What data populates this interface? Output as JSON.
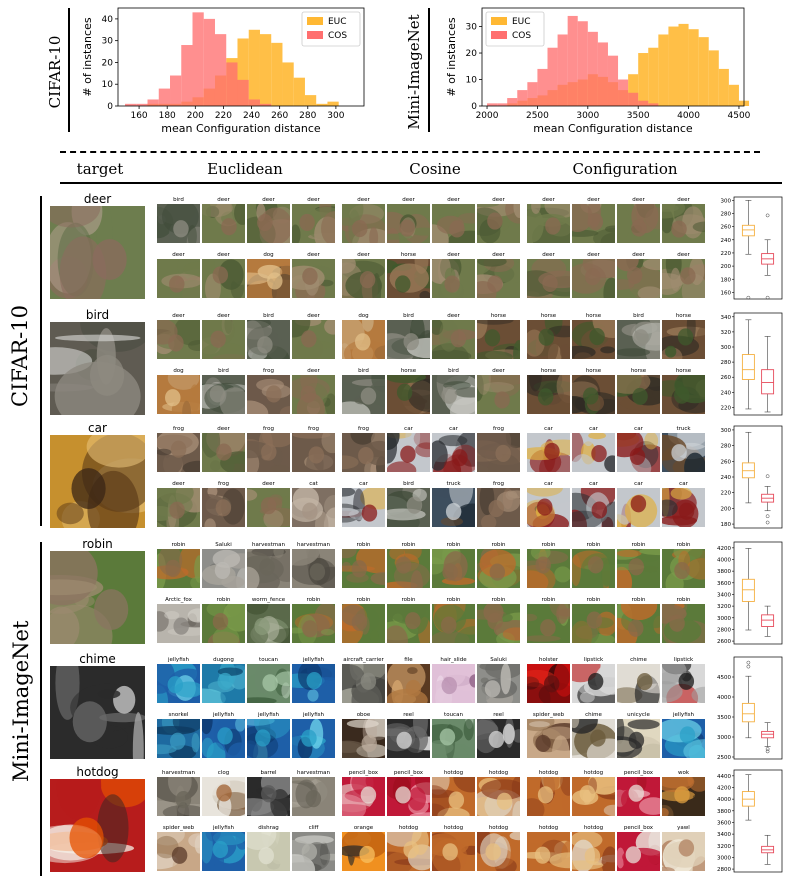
{
  "top_charts": [
    {
      "row_label": "CIFAR-10",
      "chart_data": {
        "type": "bar",
        "xlabel": "mean Configuration distance",
        "ylabel": "# of instances",
        "xlim": [
          145,
          320
        ],
        "ylim": [
          0,
          45
        ],
        "xticks": [
          "160",
          "180",
          "200",
          "220",
          "240",
          "260",
          "280",
          "300"
        ],
        "yticks": [
          "0",
          "10",
          "20",
          "30",
          "40"
        ],
        "legend_position": "top-right",
        "bin_start": 150,
        "bin_width": 8,
        "series": [
          {
            "name": "EUC",
            "color": "#ffb833",
            "values": [
              0,
              0,
              1,
              1,
              1,
              2,
              4,
              8,
              14,
              22,
              31,
              35,
              33,
              29,
              20,
              13,
              5,
              1,
              2,
              0
            ]
          },
          {
            "name": "COS",
            "color": "#ff6f6f",
            "values": [
              1,
              1,
              3,
              8,
              14,
              28,
              43,
              40,
              33,
              20,
              12,
              3,
              1,
              0,
              0,
              0,
              0,
              0,
              0,
              0
            ]
          }
        ]
      }
    },
    {
      "row_label": "Mini-ImageNet",
      "chart_data": {
        "type": "bar",
        "xlabel": "mean Configuration distance",
        "ylabel": "# of instances",
        "xlim": [
          1950,
          4550
        ],
        "ylim": [
          0,
          37
        ],
        "xticks": [
          "2000",
          "2500",
          "3000",
          "3500",
          "4000",
          "4500"
        ],
        "yticks": [
          "0",
          "10",
          "20",
          "30"
        ],
        "legend_position": "top-left",
        "bin_start": 2000,
        "bin_width": 100,
        "series": [
          {
            "name": "EUC",
            "color": "#ffb833",
            "values": [
              0,
              0,
              1,
              2,
              3,
              4,
              6,
              8,
              9,
              10,
              12,
              11,
              9,
              6,
              12,
              20,
              22,
              27,
              30,
              31,
              29,
              26,
              21,
              14,
              8,
              2,
              0
            ]
          },
          {
            "name": "COS",
            "color": "#ff6f6f",
            "values": [
              1,
              1,
              3,
              6,
              9,
              14,
              22,
              27,
              34,
              32,
              28,
              24,
              19,
              10,
              5,
              2,
              1,
              0,
              0,
              0,
              0,
              0,
              0,
              0,
              0,
              0,
              0
            ]
          }
        ]
      }
    }
  ],
  "column_headers": {
    "target": "target",
    "euclidean": "Euclidean",
    "cosine": "Cosine",
    "configuration": "Configuration"
  },
  "section_labels": {
    "cifar": "CIFAR-10",
    "mini": "Mini-ImageNet"
  },
  "targets": [
    {
      "name": "deer",
      "palette": [
        "#6d7d4e",
        "#8b6b5d",
        "#5e6e48",
        "#b9a497"
      ]
    },
    {
      "name": "bird",
      "palette": [
        "#5f5b52",
        "#8d8980",
        "#d8d8d4",
        "#464b3e"
      ]
    },
    {
      "name": "car",
      "palette": [
        "#c6902e",
        "#3a2516",
        "#e8c27a",
        "#5a3a18"
      ]
    },
    {
      "name": "robin",
      "palette": [
        "#5b7a3a",
        "#8a7460",
        "#6e8e42",
        "#9c8a6f"
      ]
    },
    {
      "name": "chime",
      "palette": [
        "#2b2b2b",
        "#6a6a6a",
        "#a4a4a4",
        "#d0d0d0"
      ]
    },
    {
      "name": "hotdog",
      "palette": [
        "#b71c1c",
        "#e65100",
        "#f5f0e6",
        "#3e2723"
      ]
    }
  ],
  "neighbors": [
    {
      "euclidean": [
        [
          "bird",
          "deer",
          "deer",
          "deer"
        ],
        [
          "deer",
          "deer",
          "dog",
          "deer"
        ]
      ],
      "cosine": [
        [
          "deer",
          "deer",
          "deer",
          "deer"
        ],
        [
          "deer",
          "horse",
          "deer",
          "deer"
        ]
      ],
      "configuration": [
        [
          "deer",
          "deer",
          "deer",
          "deer"
        ],
        [
          "deer",
          "deer",
          "deer",
          "deer"
        ]
      ]
    },
    {
      "euclidean": [
        [
          "deer",
          "deer",
          "bird",
          "deer"
        ],
        [
          "dog",
          "bird",
          "frog",
          "deer"
        ]
      ],
      "cosine": [
        [
          "dog",
          "bird",
          "deer",
          "horse"
        ],
        [
          "bird",
          "horse",
          "bird",
          "deer"
        ]
      ],
      "configuration": [
        [
          "horse",
          "horse",
          "bird",
          "horse"
        ],
        [
          "horse",
          "horse",
          "horse",
          "horse"
        ]
      ]
    },
    {
      "euclidean": [
        [
          "frog",
          "deer",
          "frog",
          "frog"
        ],
        [
          "deer",
          "frog",
          "deer",
          "cat"
        ]
      ],
      "cosine": [
        [
          "frog",
          "car",
          "car",
          "frog"
        ],
        [
          "car",
          "bird",
          "truck",
          "frog"
        ]
      ],
      "configuration": [
        [
          "car",
          "car",
          "car",
          "truck"
        ],
        [
          "car",
          "car",
          "car",
          "car"
        ]
      ]
    },
    {
      "euclidean": [
        [
          "robin",
          "Saluki",
          "harvestman",
          "harvestman"
        ],
        [
          "Arctic_fox",
          "robin",
          "worm_fence",
          "robin"
        ]
      ],
      "cosine": [
        [
          "robin",
          "robin",
          "robin",
          "robin"
        ],
        [
          "robin",
          "robin",
          "robin",
          "robin"
        ]
      ],
      "configuration": [
        [
          "robin",
          "robin",
          "robin",
          "robin"
        ],
        [
          "robin",
          "robin",
          "robin",
          "robin"
        ]
      ]
    },
    {
      "euclidean": [
        [
          "jellyfish",
          "dugong",
          "toucan",
          "jellyfish"
        ],
        [
          "snorkel",
          "jellyfish",
          "jellyfish",
          "jellyfish"
        ]
      ],
      "cosine": [
        [
          "aircraft_carrier",
          "file",
          "hair_slide",
          "Saluki"
        ],
        [
          "oboe",
          "reel",
          "toucan",
          "reel"
        ]
      ],
      "configuration": [
        [
          "holster",
          "lipstick",
          "chime",
          "lipstick"
        ],
        [
          "spider_web",
          "chime",
          "unicycle",
          "jellyfish"
        ]
      ]
    },
    {
      "euclidean": [
        [
          "harvestman",
          "clog",
          "barrel",
          "harvestman"
        ],
        [
          "spider_web",
          "jellyfish",
          "dishrag",
          "cliff"
        ]
      ],
      "cosine": [
        [
          "pencil_box",
          "pencil_box",
          "hotdog",
          "hotdog"
        ],
        [
          "orange",
          "hotdog",
          "hotdog",
          "hotdog"
        ]
      ],
      "configuration": [
        [
          "hotdog",
          "hotdog",
          "pencil_box",
          "wok"
        ],
        [
          "hotdog",
          "hotdog",
          "pencil_box",
          "yawl"
        ]
      ]
    }
  ],
  "boxplots": [
    {
      "ylim": [
        150,
        305
      ],
      "yticks": [
        "160",
        "180",
        "200",
        "220",
        "240",
        "260",
        "280",
        "300"
      ],
      "euc": {
        "q1": 246,
        "med": 255,
        "q3": 262,
        "lo": 218,
        "hi": 300,
        "outliers": [
          152
        ]
      },
      "cos": {
        "q1": 203,
        "med": 211,
        "q3": 219,
        "lo": 186,
        "hi": 240,
        "outliers": [
          277,
          152
        ]
      }
    },
    {
      "ylim": [
        210,
        345
      ],
      "yticks": [
        "220",
        "240",
        "260",
        "280",
        "300",
        "320",
        "340"
      ],
      "euc": {
        "q1": 257,
        "med": 270,
        "q3": 290,
        "lo": 218,
        "hi": 336,
        "outliers": []
      },
      "cos": {
        "q1": 238,
        "med": 253,
        "q3": 270,
        "lo": 214,
        "hi": 314,
        "outliers": []
      }
    },
    {
      "ylim": [
        175,
        305
      ],
      "yticks": [
        "180",
        "200",
        "220",
        "240",
        "260",
        "280",
        "300"
      ],
      "euc": {
        "q1": 239,
        "med": 248,
        "q3": 258,
        "lo": 207,
        "hi": 297,
        "outliers": []
      },
      "cos": {
        "q1": 208,
        "med": 213,
        "q3": 218,
        "lo": 197,
        "hi": 228,
        "outliers": [
          241,
          190,
          182
        ]
      }
    },
    {
      "ylim": [
        2550,
        4300
      ],
      "yticks": [
        "2600",
        "2800",
        "3000",
        "3200",
        "3400",
        "3600",
        "3800",
        "4000",
        "4200"
      ],
      "euc": {
        "q1": 3280,
        "med": 3480,
        "q3": 3660,
        "lo": 2790,
        "hi": 4190,
        "outliers": []
      },
      "cos": {
        "q1": 2850,
        "med": 2960,
        "q3": 3050,
        "lo": 2680,
        "hi": 3200,
        "outliers": []
      }
    },
    {
      "ylim": [
        2450,
        5000
      ],
      "yticks": [
        "2500",
        "3000",
        "3500",
        "4000",
        "4500"
      ],
      "euc": {
        "q1": 3380,
        "med": 3580,
        "q3": 3840,
        "lo": 2980,
        "hi": 4520,
        "outliers": [
          4860,
          4760
        ]
      },
      "cos": {
        "q1": 2980,
        "med": 3070,
        "q3": 3140,
        "lo": 2760,
        "hi": 3360,
        "outliers": [
          2640,
          2700
        ]
      }
    },
    {
      "ylim": [
        2750,
        4500
      ],
      "yticks": [
        "2800",
        "3000",
        "3200",
        "3400",
        "3600",
        "3800",
        "4000",
        "4200",
        "4400"
      ],
      "euc": {
        "q1": 3880,
        "med": 4000,
        "q3": 4130,
        "lo": 3640,
        "hi": 4420,
        "outliers": []
      },
      "cos": {
        "q1": 3080,
        "med": 3130,
        "q3": 3190,
        "lo": 2880,
        "hi": 3380,
        "outliers": []
      }
    }
  ],
  "box_colors": {
    "euc": "#f5b041",
    "cos": "#e74c5c"
  }
}
